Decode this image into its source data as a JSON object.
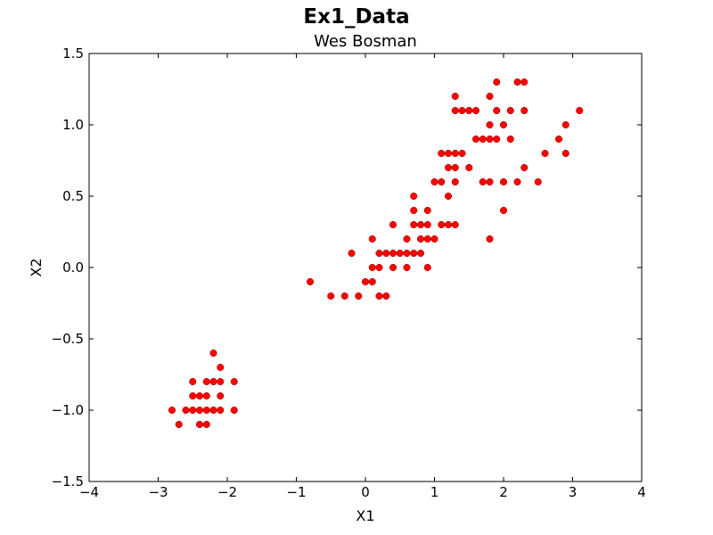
{
  "figure": {
    "suptitle": "Ex1_Data",
    "title": "Wes Bosman"
  },
  "chart_data": {
    "type": "scatter",
    "title": "Wes Bosman",
    "suptitle": "Ex1_Data",
    "xlabel": "X1",
    "ylabel": "X2",
    "xlim": [
      -4,
      4
    ],
    "ylim": [
      -1.5,
      1.5
    ],
    "xticks": [
      -4,
      -3,
      -2,
      -1,
      0,
      1,
      2,
      3,
      4
    ],
    "xtick_labels": [
      "−4",
      "−3",
      "−2",
      "−1",
      "0",
      "1",
      "2",
      "3",
      "4"
    ],
    "yticks": [
      -1.5,
      -1.0,
      -0.5,
      0.0,
      0.5,
      1.0,
      1.5
    ],
    "ytick_labels": [
      "−1.5",
      "−1.0",
      "−0.5",
      "0.0",
      "0.5",
      "1.0",
      "1.5"
    ],
    "grid": false,
    "marker_color": "#ff0000",
    "points": [
      [
        -2.8,
        -1.0
      ],
      [
        -2.7,
        -1.1
      ],
      [
        -2.6,
        -1.0
      ],
      [
        -2.5,
        -1.0
      ],
      [
        -2.5,
        -0.9
      ],
      [
        -2.5,
        -0.8
      ],
      [
        -2.4,
        -1.0
      ],
      [
        -2.4,
        -0.9
      ],
      [
        -2.4,
        -1.1
      ],
      [
        -2.3,
        -1.0
      ],
      [
        -2.3,
        -0.9
      ],
      [
        -2.3,
        -0.8
      ],
      [
        -2.3,
        -1.1
      ],
      [
        -2.2,
        -1.0
      ],
      [
        -2.2,
        -0.8
      ],
      [
        -2.2,
        -0.6
      ],
      [
        -2.1,
        -1.0
      ],
      [
        -2.1,
        -0.9
      ],
      [
        -2.1,
        -0.8
      ],
      [
        -2.1,
        -0.7
      ],
      [
        -1.9,
        -1.0
      ],
      [
        -1.9,
        -0.8
      ],
      [
        -0.8,
        -0.1
      ],
      [
        -0.5,
        -0.2
      ],
      [
        -0.3,
        -0.2
      ],
      [
        -0.2,
        0.1
      ],
      [
        -0.1,
        -0.2
      ],
      [
        0.0,
        -0.1
      ],
      [
        0.1,
        0.0
      ],
      [
        0.1,
        -0.1
      ],
      [
        0.1,
        0.2
      ],
      [
        0.2,
        0.0
      ],
      [
        0.2,
        0.1
      ],
      [
        0.2,
        -0.2
      ],
      [
        0.3,
        0.1
      ],
      [
        0.3,
        -0.2
      ],
      [
        0.4,
        0.1
      ],
      [
        0.4,
        0.0
      ],
      [
        0.4,
        0.3
      ],
      [
        0.5,
        0.1
      ],
      [
        0.6,
        0.1
      ],
      [
        0.6,
        0.0
      ],
      [
        0.6,
        0.2
      ],
      [
        0.7,
        0.1
      ],
      [
        0.7,
        0.3
      ],
      [
        0.7,
        0.4
      ],
      [
        0.7,
        0.5
      ],
      [
        0.8,
        0.1
      ],
      [
        0.8,
        0.2
      ],
      [
        0.8,
        0.3
      ],
      [
        0.9,
        0.2
      ],
      [
        0.9,
        0.3
      ],
      [
        0.9,
        0.4
      ],
      [
        0.9,
        0.0
      ],
      [
        1.0,
        0.2
      ],
      [
        1.0,
        0.6
      ],
      [
        1.1,
        0.6
      ],
      [
        1.1,
        0.3
      ],
      [
        1.1,
        0.8
      ],
      [
        1.2,
        0.3
      ],
      [
        1.2,
        0.5
      ],
      [
        1.2,
        0.7
      ],
      [
        1.2,
        0.8
      ],
      [
        1.3,
        0.3
      ],
      [
        1.3,
        0.6
      ],
      [
        1.3,
        0.7
      ],
      [
        1.3,
        0.8
      ],
      [
        1.3,
        1.1
      ],
      [
        1.3,
        1.2
      ],
      [
        1.4,
        0.8
      ],
      [
        1.4,
        1.1
      ],
      [
        1.5,
        0.7
      ],
      [
        1.5,
        1.1
      ],
      [
        1.6,
        0.9
      ],
      [
        1.6,
        1.1
      ],
      [
        1.7,
        0.6
      ],
      [
        1.7,
        0.9
      ],
      [
        1.8,
        0.6
      ],
      [
        1.8,
        0.9
      ],
      [
        1.8,
        1.0
      ],
      [
        1.8,
        1.2
      ],
      [
        1.8,
        0.2
      ],
      [
        1.9,
        0.9
      ],
      [
        1.9,
        1.1
      ],
      [
        1.9,
        1.3
      ],
      [
        2.0,
        0.6
      ],
      [
        2.0,
        0.4
      ],
      [
        2.0,
        1.0
      ],
      [
        2.1,
        0.9
      ],
      [
        2.1,
        1.1
      ],
      [
        2.2,
        0.6
      ],
      [
        2.2,
        1.3
      ],
      [
        2.3,
        0.7
      ],
      [
        2.3,
        1.1
      ],
      [
        2.3,
        1.3
      ],
      [
        2.5,
        0.6
      ],
      [
        2.6,
        0.8
      ],
      [
        2.8,
        0.9
      ],
      [
        2.9,
        1.0
      ],
      [
        2.9,
        0.8
      ],
      [
        3.1,
        1.1
      ]
    ]
  }
}
